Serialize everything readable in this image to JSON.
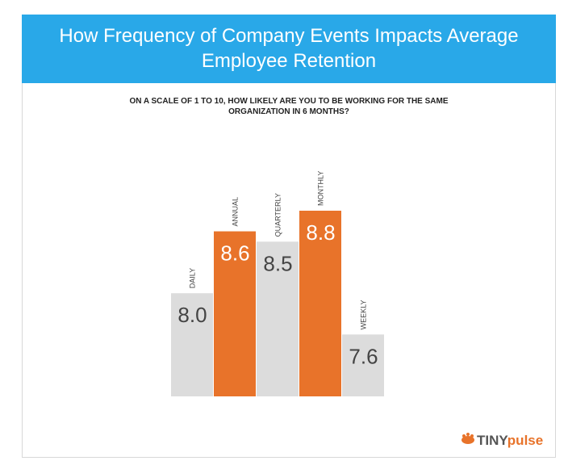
{
  "chart_data": {
    "type": "bar",
    "title": [
      "How Frequency of Company Events Impacts Average",
      "Employee Retention"
    ],
    "subtitle": [
      "ON A SCALE OF 1 TO 10, HOW LIKELY ARE YOU TO BE WORKING FOR THE SAME",
      "ORGANIZATION IN 6 MONTHS?"
    ],
    "categories": [
      "DAILY",
      "ANNUAL",
      "QUARTERLY",
      "MONTHLY",
      "WEEKLY"
    ],
    "values": [
      8.0,
      8.6,
      8.5,
      8.8,
      7.6
    ],
    "value_labels": [
      "8.0",
      "8.6",
      "8.5",
      "8.8",
      "7.6"
    ],
    "colors": [
      "#dcdcdc",
      "#e8732a",
      "#dcdcdc",
      "#e8732a",
      "#dcdcdc"
    ],
    "logo": {
      "prefix": "TINY",
      "suffix": "pulse"
    }
  }
}
